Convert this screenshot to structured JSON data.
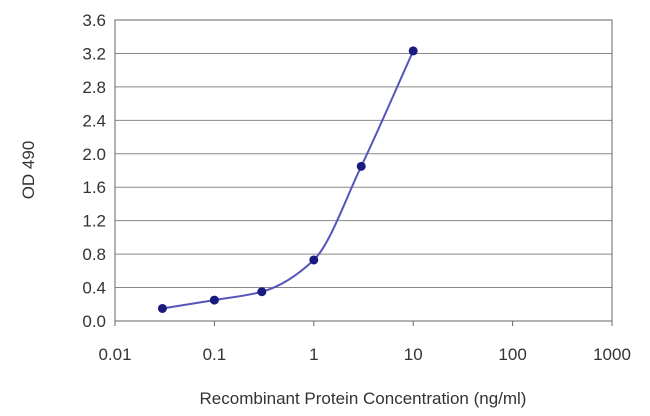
{
  "chart_data": {
    "type": "line",
    "xlabel": "Recombinant Protein Concentration (ng/ml)",
    "ylabel": "OD 490",
    "x_scale": "log",
    "xlim": [
      0.01,
      1000
    ],
    "ylim": [
      0.0,
      3.6
    ],
    "x_ticks": [
      0.01,
      0.1,
      1,
      10,
      100,
      1000
    ],
    "x_tick_labels": [
      "0.01",
      "0.1",
      "1",
      "10",
      "100",
      "1000"
    ],
    "y_ticks": [
      0.0,
      0.4,
      0.8,
      1.2,
      1.6,
      2.0,
      2.4,
      2.8,
      3.2,
      3.6
    ],
    "y_tick_labels": [
      "0.0",
      "0.4",
      "0.8",
      "1.2",
      "1.6",
      "2.0",
      "2.4",
      "2.8",
      "3.2",
      "3.6"
    ],
    "grid": "horizontal",
    "series": [
      {
        "x": [
          0.03,
          0.1,
          0.3,
          1,
          3,
          10
        ],
        "y": [
          0.15,
          0.25,
          0.35,
          0.73,
          1.85,
          3.23
        ]
      }
    ],
    "colors": {
      "line": "#5555bb",
      "marker": "#1a1a80",
      "grid": "#888888",
      "frame": "#666666"
    }
  }
}
